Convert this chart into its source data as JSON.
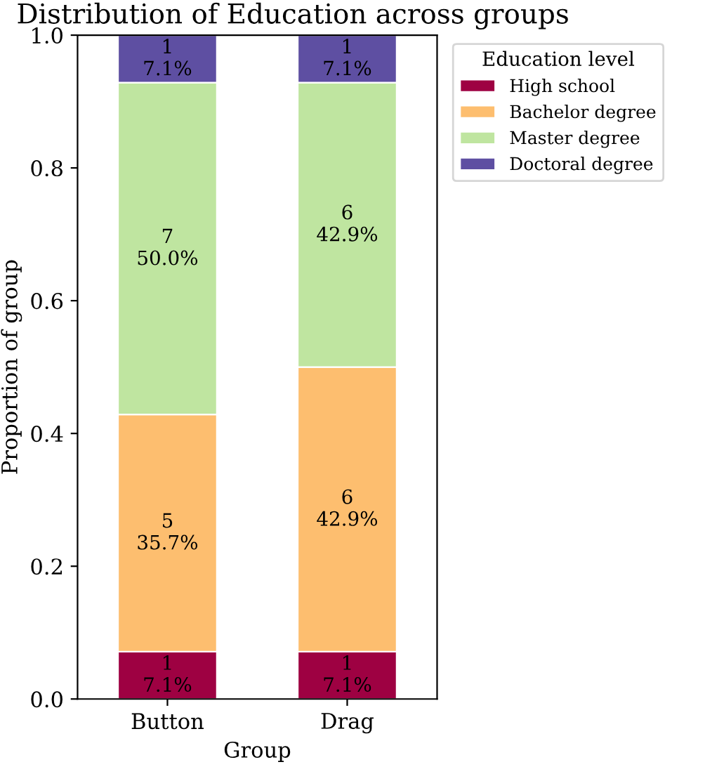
{
  "chart_data": {
    "type": "bar",
    "stacked": true,
    "title": "Distribution of Education across groups",
    "xlabel": "Group",
    "ylabel": "Proportion of group",
    "legend_title": "Education level",
    "legend": "top right",
    "categories": [
      "Button",
      "Drag"
    ],
    "series": [
      {
        "name": "High school",
        "color": "#9e0142",
        "values": [
          0.0714,
          0.0714
        ],
        "value_labels": [
          "1\n7.1%",
          "1\n7.1%"
        ]
      },
      {
        "name": "Bachelor degree",
        "color": "#fdbe6f",
        "values": [
          0.3571,
          0.4286
        ],
        "value_labels": [
          "5\n35.7%",
          "6\n42.9%"
        ]
      },
      {
        "name": "Master degree",
        "color": "#bfe5a0",
        "values": [
          0.5,
          0.4286
        ],
        "value_labels": [
          "7\n50.0%",
          "6\n42.9%"
        ]
      },
      {
        "name": "Doctoral degree",
        "color": "#5e4fa2",
        "values": [
          0.0714,
          0.0714
        ],
        "value_labels": [
          "1\n7.1%",
          "1\n7.1%"
        ]
      }
    ],
    "ylim": [
      0,
      1
    ],
    "yticks": [
      {
        "value": 0,
        "label": "0.0"
      },
      0.2,
      0.4,
      0.6,
      0.8,
      {
        "value": 1,
        "label": "1.0"
      }
    ]
  }
}
